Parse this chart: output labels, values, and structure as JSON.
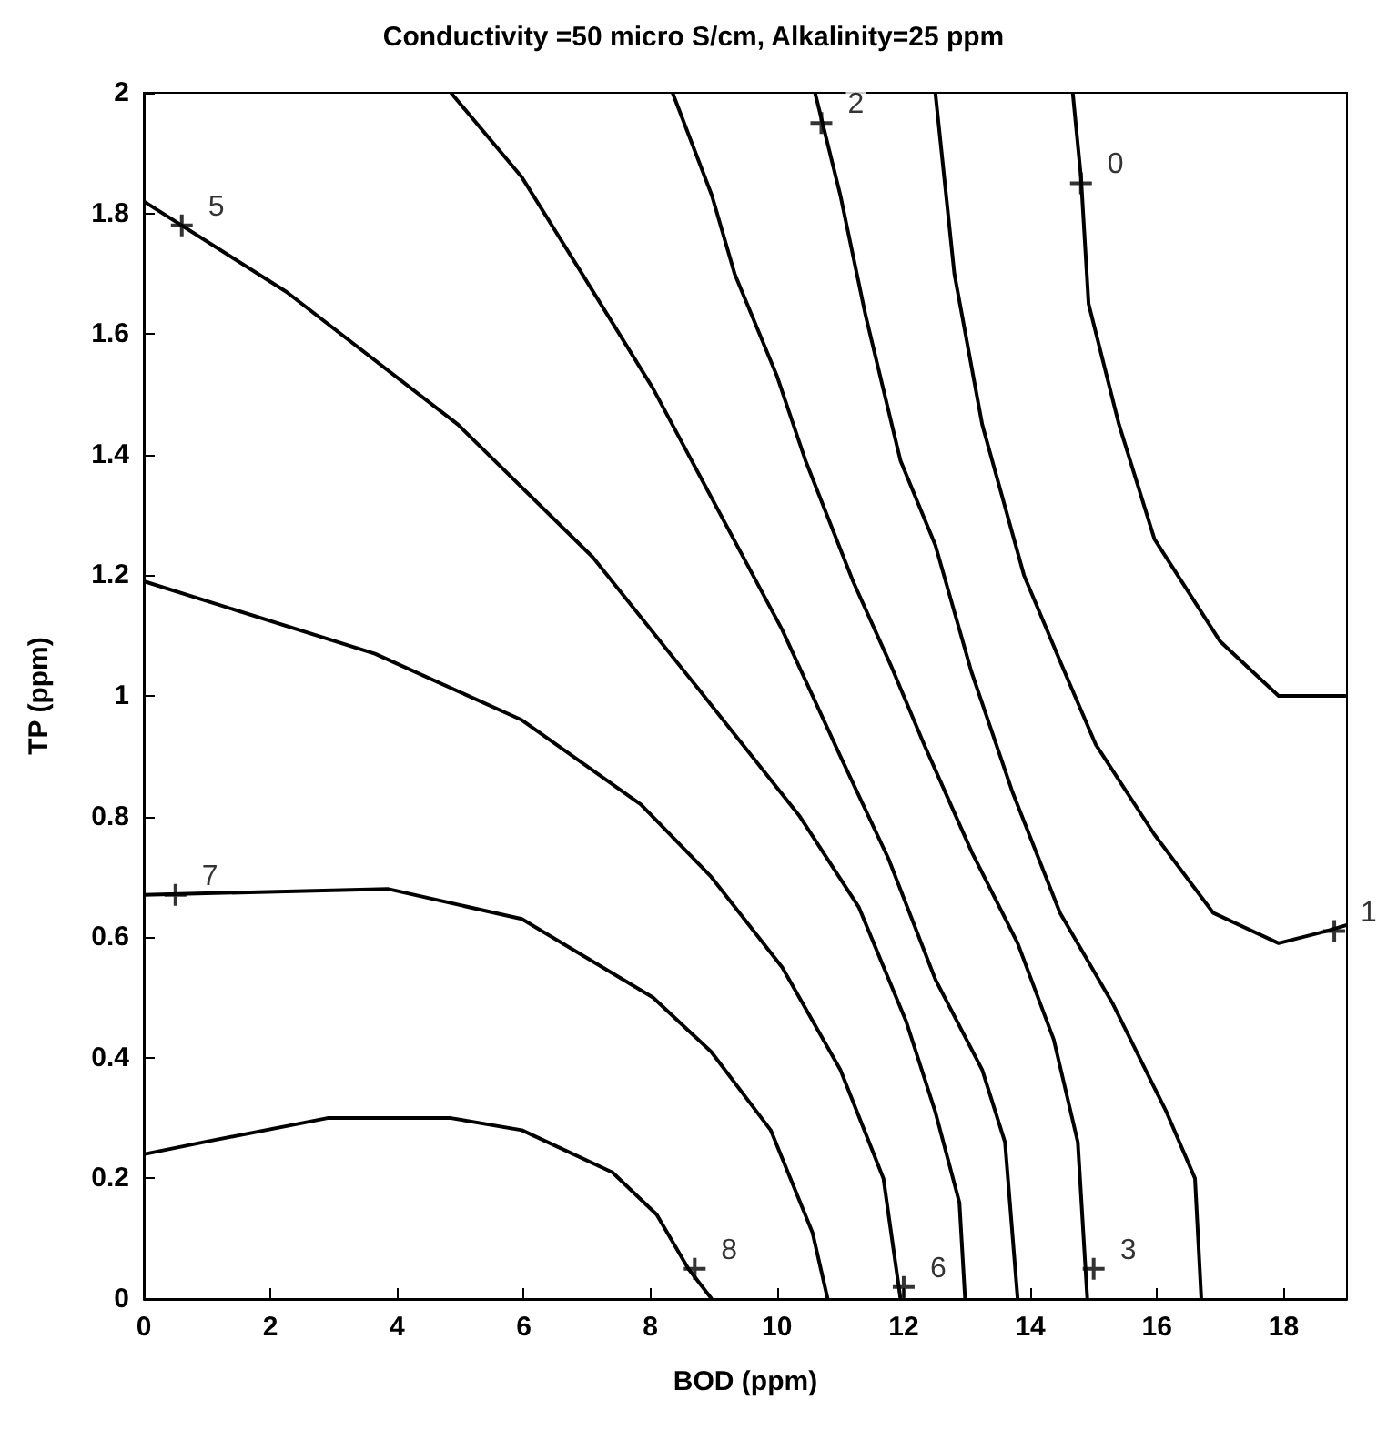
{
  "chart_data": {
    "type": "line",
    "title": "Conductivity =50 micro S/cm, Alkalinity=25 ppm",
    "xlabel": "BOD (ppm)",
    "ylabel": "TP (ppm)",
    "xlim": [
      0,
      19
    ],
    "xticks": [
      0,
      2,
      4,
      6,
      8,
      10,
      12,
      14,
      16,
      18
    ],
    "ylim": [
      0,
      2
    ],
    "yticks": [
      0,
      0.2,
      0.4,
      0.6,
      0.8,
      1,
      1.2,
      1.4,
      1.6,
      1.8,
      2
    ],
    "grid": false,
    "marker": "none",
    "line_style": "solid",
    "series": [
      {
        "color": "#000000",
        "x": [
          0,
          0.94,
          2.9,
          4.85,
          5.97,
          7.4,
          8.1,
          8.6,
          8.97
        ],
        "values": [
          0.24,
          0.26,
          0.3,
          0.3,
          0.28,
          0.21,
          0.14,
          0.05,
          0
        ]
      },
      {
        "color": "#000000",
        "x": [
          0,
          3.85,
          5.97,
          8.04,
          8.96,
          9.9,
          10.56,
          10.8
        ],
        "values": [
          0.67,
          0.68,
          0.63,
          0.5,
          0.41,
          0.28,
          0.11,
          0
        ]
      },
      {
        "color": "#000000",
        "x": [
          0,
          3.65,
          5.97,
          7.85,
          8.96,
          10.08,
          11.0,
          11.68,
          11.95
        ],
        "values": [
          1.19,
          1.07,
          0.96,
          0.82,
          0.7,
          0.55,
          0.38,
          0.2,
          0
        ]
      },
      {
        "color": "#000000",
        "x": [
          0,
          2.25,
          4.96,
          7.09,
          8.77,
          10.36,
          11.29,
          12.04,
          12.5,
          12.88,
          12.97
        ],
        "values": [
          1.82,
          1.67,
          1.45,
          1.23,
          1.01,
          0.8,
          0.65,
          0.46,
          0.31,
          0.16,
          0
        ]
      },
      {
        "color": "#000000",
        "x": [
          4.85,
          5.97,
          6.92,
          8.04,
          10.08,
          11.0,
          11.76,
          12.5,
          13.24,
          13.6,
          13.8
        ],
        "values": [
          2,
          1.86,
          1.7,
          1.51,
          1.11,
          0.9,
          0.73,
          0.53,
          0.38,
          0.26,
          0
        ]
      },
      {
        "color": "#000000",
        "x": [
          8.35,
          8.97,
          9.33,
          10.0,
          10.45,
          11.2,
          11.8,
          12.32,
          13.08,
          13.8,
          14.37,
          14.75,
          14.9
        ],
        "values": [
          2,
          1.83,
          1.7,
          1.53,
          1.39,
          1.19,
          1.05,
          0.92,
          0.74,
          0.59,
          0.43,
          0.26,
          0
        ]
      },
      {
        "color": "#000000",
        "x": [
          10.6,
          11.0,
          11.4,
          11.95,
          12.5,
          13.07,
          13.72,
          14.47,
          15.3,
          16.15,
          16.6,
          16.7
        ],
        "values": [
          2,
          1.83,
          1.63,
          1.39,
          1.25,
          1.04,
          0.84,
          0.64,
          0.49,
          0.31,
          0.2,
          0
        ]
      },
      {
        "color": "#000000",
        "x": [
          12.5,
          12.8,
          13.24,
          13.9,
          14.5,
          15.03,
          15.96,
          16.89,
          17.92,
          18.67,
          19
        ],
        "values": [
          2,
          1.7,
          1.45,
          1.2,
          1.05,
          0.92,
          0.77,
          0.64,
          0.59,
          0.61,
          0.62
        ]
      },
      {
        "color": "#000000",
        "x": [
          14.67,
          14.8,
          14.92,
          15.4,
          15.96,
          17.0,
          17.92,
          19
        ],
        "values": [
          2,
          1.86,
          1.65,
          1.45,
          1.26,
          1.09,
          1.0,
          1.0
        ]
      }
    ],
    "annotations": [
      {
        "text": "8",
        "x": 8.7,
        "y": 0.05
      },
      {
        "text": "7",
        "x": 0.5,
        "y": 0.67
      },
      {
        "text": "6",
        "x": 12,
        "y": 0.02
      },
      {
        "text": "5",
        "x": 0.6,
        "y": 1.78
      },
      {
        "text": "3",
        "x": 15,
        "y": 0.05
      },
      {
        "text": "2",
        "x": 10.7,
        "y": 1.95
      },
      {
        "text": "0",
        "x": 14.8,
        "y": 1.85
      },
      {
        "text": "1",
        "x": 18.8,
        "y": 0.61
      }
    ]
  }
}
